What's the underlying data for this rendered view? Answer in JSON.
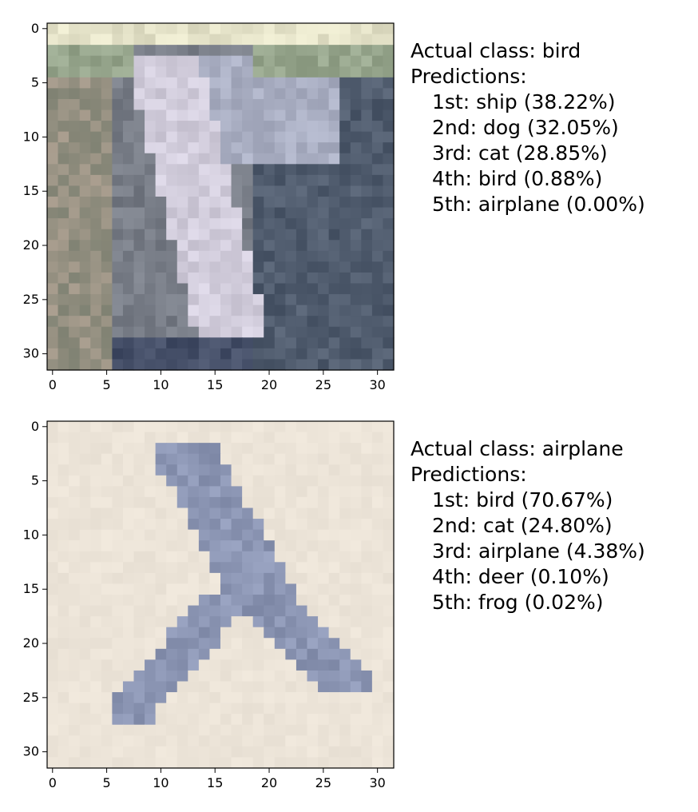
{
  "panels": [
    {
      "actual": "Actual class: bird",
      "predictions_label": "Predictions:",
      "predictions": [
        "1st: ship (38.22%)",
        "2nd: dog (32.05%)",
        "3rd: cat (28.85%)",
        "4th: bird (0.88%)",
        "5th: airplane (0.00%)"
      ],
      "x_ticks": [
        "0",
        "5",
        "10",
        "15",
        "20",
        "25",
        "30"
      ],
      "y_ticks": [
        "0",
        "5",
        "10",
        "15",
        "20",
        "25",
        "30"
      ],
      "image_subject": "bird (pixelated, grey-blue tones)"
    },
    {
      "actual": "Actual class: airplane",
      "predictions_label": "Predictions:",
      "predictions": [
        "1st: bird (70.67%)",
        "2nd: cat (24.80%)",
        "3rd: airplane (4.38%)",
        "4th: deer (0.10%)",
        "5th: frog (0.02%)"
      ],
      "x_ticks": [
        "0",
        "5",
        "10",
        "15",
        "20",
        "25",
        "30"
      ],
      "y_ticks": [
        "0",
        "5",
        "10",
        "15",
        "20",
        "25",
        "30"
      ],
      "image_subject": "airplane (pixelated, on beige background)"
    }
  ]
}
